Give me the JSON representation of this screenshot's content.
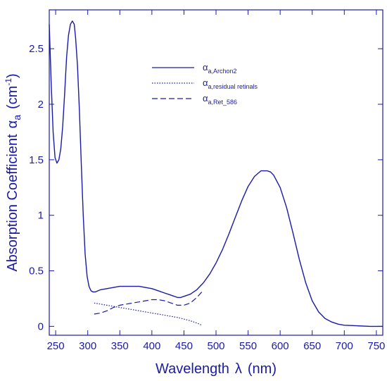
{
  "chart_data": {
    "type": "line",
    "xlabel_text": "Wavelength",
    "xlabel_symbol": "λ",
    "xlabel_unit": "(nm)",
    "ylabel_text": "Absorption Coefficient",
    "ylabel_symbol": "α",
    "ylabel_symbol_sub": "a",
    "ylabel_unit": "(cm",
    "ylabel_unit_exp": "-1",
    "ylabel_unit_close": ")",
    "xlim": [
      240,
      760
    ],
    "ylim": [
      -0.08,
      2.85
    ],
    "xticks": [
      250,
      300,
      350,
      400,
      450,
      500,
      550,
      600,
      650,
      700,
      750
    ],
    "xtick_labels": [
      "250",
      "300",
      "350",
      "400",
      "450",
      "500",
      "550",
      "600",
      "650",
      "700",
      "750"
    ],
    "yticks": [
      0,
      0.5,
      1,
      1.5,
      2,
      2.5
    ],
    "ytick_labels": [
      "0",
      "0.5",
      "1",
      "1.5",
      "2",
      "2.5"
    ],
    "grid": false,
    "legend_position": "top-center",
    "color": "#1a1aa8",
    "series": [
      {
        "name": "αa,Archon2",
        "legend_symbol": "α",
        "legend_sub": "a,Archon2",
        "style": "solid",
        "x": [
          240,
          243,
          246,
          249,
          252,
          255,
          258,
          261,
          264,
          267,
          270,
          273,
          276,
          279,
          281,
          284,
          287,
          290,
          293,
          296,
          299,
          302,
          305,
          308,
          312,
          316,
          320,
          330,
          340,
          350,
          360,
          370,
          380,
          390,
          400,
          410,
          420,
          430,
          440,
          445,
          450,
          460,
          470,
          480,
          490,
          500,
          510,
          520,
          530,
          540,
          550,
          560,
          570,
          580,
          585,
          590,
          600,
          610,
          620,
          630,
          640,
          650,
          660,
          670,
          680,
          690,
          700,
          720,
          740,
          760
        ],
        "y": [
          2.72,
          2.2,
          1.75,
          1.52,
          1.47,
          1.5,
          1.6,
          1.8,
          2.1,
          2.42,
          2.62,
          2.72,
          2.75,
          2.72,
          2.6,
          2.35,
          1.95,
          1.45,
          1.0,
          0.65,
          0.45,
          0.36,
          0.32,
          0.31,
          0.31,
          0.32,
          0.33,
          0.34,
          0.35,
          0.36,
          0.36,
          0.36,
          0.36,
          0.35,
          0.34,
          0.32,
          0.3,
          0.28,
          0.26,
          0.26,
          0.27,
          0.29,
          0.33,
          0.39,
          0.47,
          0.57,
          0.69,
          0.83,
          0.98,
          1.13,
          1.26,
          1.35,
          1.4,
          1.4,
          1.39,
          1.36,
          1.25,
          1.07,
          0.84,
          0.6,
          0.39,
          0.23,
          0.13,
          0.07,
          0.04,
          0.02,
          0.01,
          0.005,
          0.0,
          0.0
        ]
      },
      {
        "name": "αa,residual retinals",
        "legend_symbol": "α",
        "legend_sub": "a,residual retinals",
        "style": "dotted",
        "x": [
          310,
          320,
          330,
          340,
          350,
          360,
          370,
          380,
          390,
          400,
          410,
          420,
          430,
          440,
          450,
          460,
          470,
          478
        ],
        "y": [
          0.21,
          0.2,
          0.19,
          0.18,
          0.17,
          0.16,
          0.15,
          0.14,
          0.13,
          0.12,
          0.11,
          0.1,
          0.09,
          0.08,
          0.065,
          0.05,
          0.03,
          0.01
        ]
      },
      {
        "name": "αa,Ret_586",
        "legend_symbol": "α",
        "legend_sub": "a,Ret_586",
        "style": "dashed",
        "x": [
          310,
          320,
          330,
          340,
          350,
          360,
          370,
          380,
          390,
          400,
          410,
          420,
          430,
          440,
          450,
          460,
          470,
          478
        ],
        "y": [
          0.11,
          0.12,
          0.14,
          0.17,
          0.19,
          0.2,
          0.21,
          0.22,
          0.23,
          0.24,
          0.24,
          0.23,
          0.21,
          0.19,
          0.19,
          0.21,
          0.26,
          0.31
        ]
      }
    ]
  }
}
